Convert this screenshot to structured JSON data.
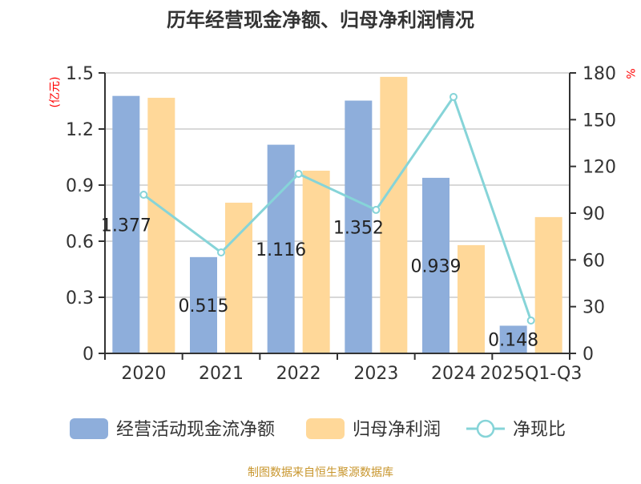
{
  "chart_data": {
    "type": "bar",
    "title": "历年经营现金净额、归母净利润情况",
    "categories": [
      "2020",
      "2021",
      "2022",
      "2023",
      "2024",
      "2025Q1-Q3"
    ],
    "series": [
      {
        "name": "经营活动现金流净额",
        "type": "bar",
        "axis": "left",
        "color": "#8eaedb",
        "values": [
          1.377,
          0.515,
          1.116,
          1.352,
          0.939,
          0.148
        ],
        "labels": [
          "1.377",
          "0.515",
          "1.116",
          "1.352",
          "0.939",
          "0.148"
        ]
      },
      {
        "name": "归母净利润",
        "type": "bar",
        "axis": "left",
        "color": "#ffd899",
        "values": [
          1.367,
          0.806,
          0.977,
          1.479,
          0.579,
          0.729
        ]
      },
      {
        "name": "净现比",
        "type": "line",
        "axis": "right",
        "color": "#86d4d8",
        "values": [
          101.8,
          64.8,
          115.2,
          92.1,
          164.6,
          21.1
        ]
      }
    ],
    "left_axis": {
      "label": "(亿元)",
      "ylim": [
        0,
        1.5
      ],
      "ticks": [
        "0",
        "0.3",
        "0.6",
        "0.9",
        "1.2",
        "1.5"
      ]
    },
    "right_axis": {
      "label": "%",
      "ylim": [
        0,
        180
      ],
      "ticks": [
        "0",
        "30",
        "60",
        "90",
        "120",
        "150",
        "180"
      ]
    },
    "grid": true,
    "legend_position": "bottom"
  },
  "source": "制图数据来自恒生聚源数据库"
}
